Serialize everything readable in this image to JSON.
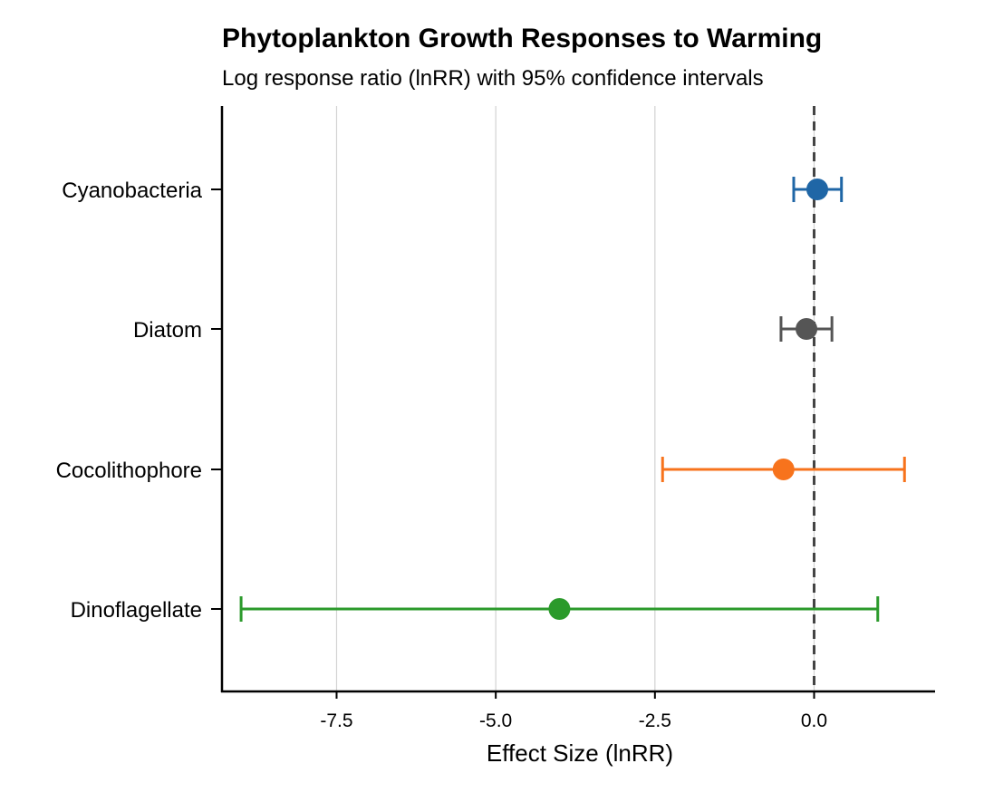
{
  "chart_data": {
    "type": "scatter",
    "subtype": "forest-plot",
    "title": "Phytoplankton Growth Responses to Warming",
    "subtitle": "Log response ratio (lnRR) with 95% confidence intervals",
    "xlabel": "Effect Size (lnRR)",
    "ylabel": "",
    "xlim": [
      -9.3,
      1.9
    ],
    "xticks": [
      -7.5,
      -5.0,
      -2.5,
      0.0
    ],
    "xtick_labels": [
      "-7.5",
      "-5.0",
      "-2.5",
      "0.0"
    ],
    "grid": "vertical-major",
    "reference_line": {
      "x": 0,
      "style": "dashed",
      "color": "#444444"
    },
    "categories": [
      "Cyanobacteria",
      "Diatom",
      "Cocolithophore",
      "Dinoflagellate"
    ],
    "series": [
      {
        "category": "Cyanobacteria",
        "estimate": 0.05,
        "ci_low": -0.32,
        "ci_high": 0.43,
        "color": "#1f66a6"
      },
      {
        "category": "Diatom",
        "estimate": -0.12,
        "ci_low": -0.52,
        "ci_high": 0.28,
        "color": "#555555"
      },
      {
        "category": "Cocolithophore",
        "estimate": -0.48,
        "ci_low": -2.38,
        "ci_high": 1.42,
        "color": "#f7731c"
      },
      {
        "category": "Dinoflagellate",
        "estimate": -4.0,
        "ci_low": -9.0,
        "ci_high": 1.0,
        "color": "#2b9a2b"
      }
    ]
  }
}
